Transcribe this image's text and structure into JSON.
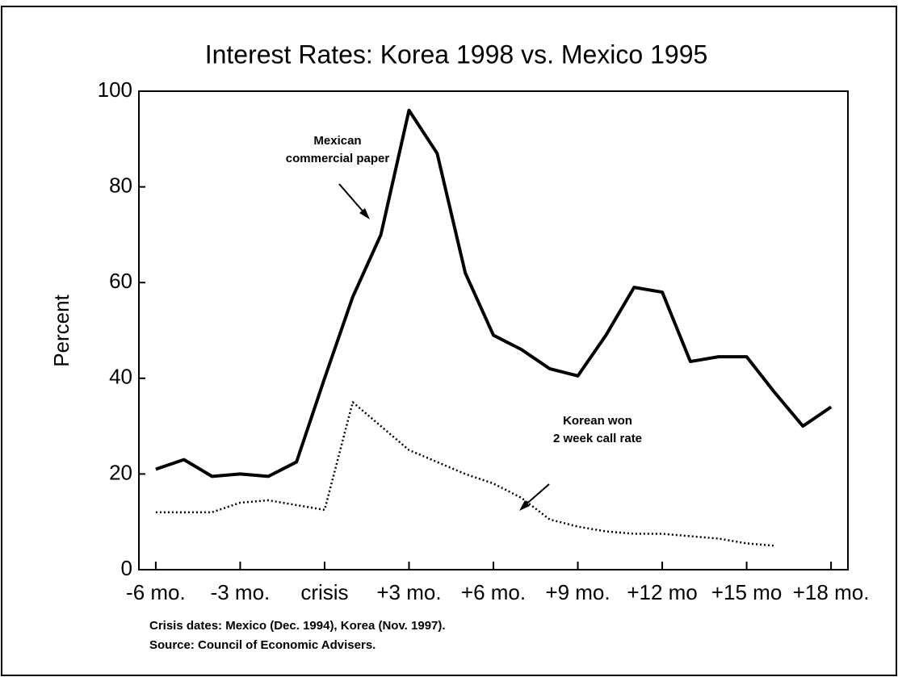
{
  "chart_data": {
    "type": "line",
    "title": "Interest Rates: Korea 1998 vs. Mexico 1995",
    "y_label": "Percent",
    "x": [
      -6,
      -5,
      -4,
      -3,
      -2,
      -1,
      0,
      1,
      2,
      3,
      4,
      5,
      6,
      7,
      8,
      9,
      10,
      11,
      12,
      13,
      14,
      15,
      16,
      17,
      18
    ],
    "series": [
      {
        "name": "Mexican commercial paper",
        "color": "#000000",
        "style": "solid",
        "values": [
          21,
          23,
          19.5,
          20,
          19.5,
          22.5,
          40,
          57,
          70,
          96,
          87,
          62,
          49,
          46,
          42,
          40.5,
          49,
          59,
          58,
          43.5,
          44.5,
          44.5,
          37,
          30,
          34
        ]
      },
      {
        "name": "Korean won 2 week call rate",
        "color": "#000000",
        "style": "dotted",
        "values": [
          12,
          12,
          12,
          14,
          14.5,
          13.5,
          12.5,
          35,
          30,
          25,
          22.5,
          20,
          18,
          15,
          10.5,
          9,
          8,
          7.5,
          7.5,
          7,
          6.5,
          5.5,
          5,
          null,
          null
        ]
      }
    ],
    "annotations": [
      {
        "lines": [
          "Mexican",
          "commercial paper"
        ]
      },
      {
        "lines": [
          "Korean won",
          "2 week call rate"
        ]
      }
    ],
    "notes": [
      "Crisis dates: Mexico (Dec. 1994), Korea (Nov. 1997).",
      "Source: Council of Economic Advisers."
    ],
    "xlim": [
      -6.6,
      18.6
    ],
    "xticks": [
      {
        "value": -6,
        "label": "-6 mo."
      },
      {
        "value": -3,
        "label": "-3 mo."
      },
      {
        "value": 0,
        "label": "crisis"
      },
      {
        "value": 3,
        "label": "+3 mo."
      },
      {
        "value": 6,
        "label": "+6 mo."
      },
      {
        "value": 9,
        "label": "+9 mo."
      },
      {
        "value": 12,
        "label": "+12 mo"
      },
      {
        "value": 15,
        "label": "+15 mo"
      },
      {
        "value": 18,
        "label": "+18 mo."
      }
    ],
    "ylim": [
      0,
      100
    ],
    "yticks": [
      0,
      20,
      40,
      60,
      80,
      100
    ],
    "grid": false
  }
}
